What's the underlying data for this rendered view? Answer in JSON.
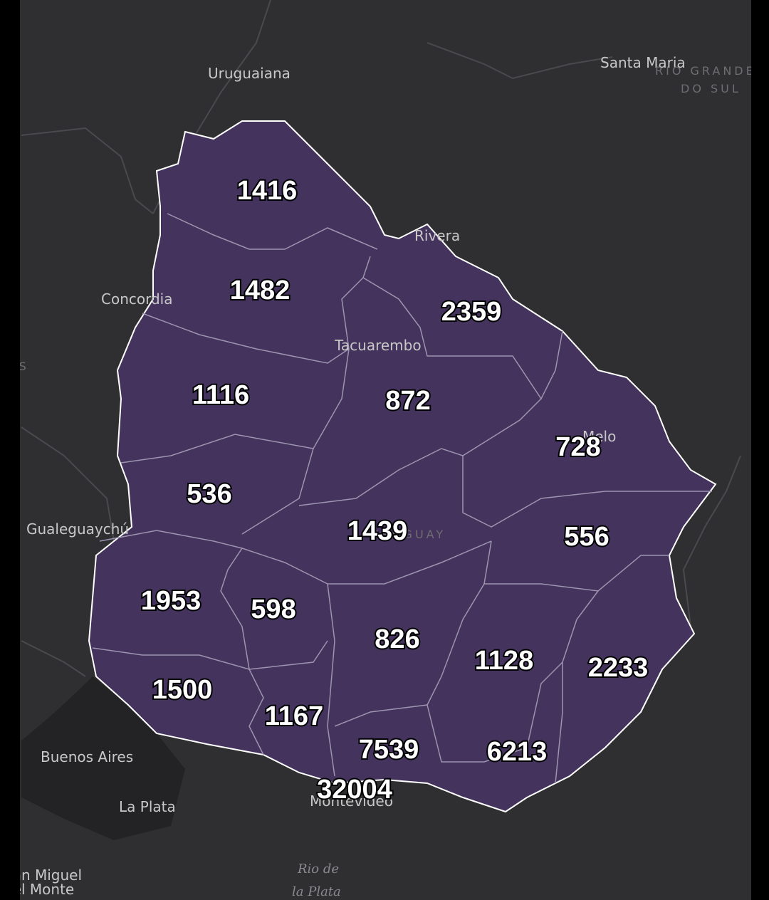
{
  "places": [
    "Uruguaiana",
    "Santa Maria",
    "RIO GRANDE",
    "DO SUL",
    "Rivera",
    "Concordia",
    "Tacuarembo",
    "Melo",
    "Gualeguaychú",
    "URUGUAY",
    "Buenos Aires",
    "La Plata",
    "Montevideo",
    "Rio de",
    "la Plata",
    "San Miguel",
    "del Monte",
    "OS"
  ],
  "regions": [
    {
      "value": "1416"
    },
    {
      "value": "1482"
    },
    {
      "value": "2359"
    },
    {
      "value": "1116"
    },
    {
      "value": "872"
    },
    {
      "value": "728"
    },
    {
      "value": "536"
    },
    {
      "value": "1439"
    },
    {
      "value": "556"
    },
    {
      "value": "1953"
    },
    {
      "value": "598"
    },
    {
      "value": "826"
    },
    {
      "value": "1128"
    },
    {
      "value": "2233"
    },
    {
      "value": "1500"
    },
    {
      "value": "1167"
    },
    {
      "value": "7539"
    },
    {
      "value": "6213"
    },
    {
      "value": "32004"
    }
  ]
}
